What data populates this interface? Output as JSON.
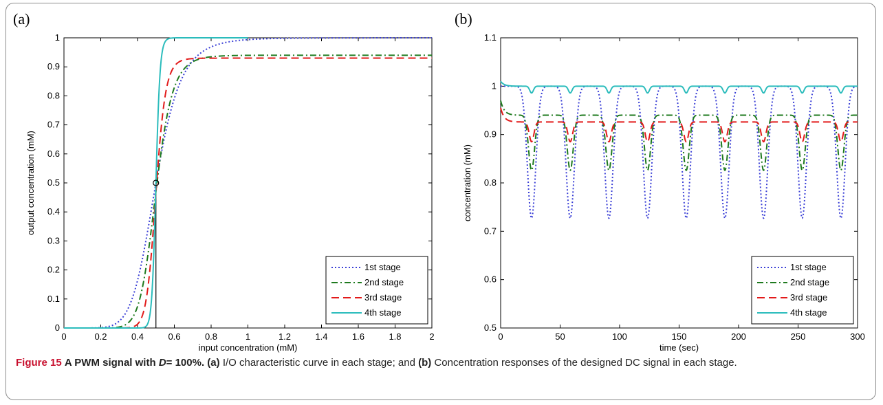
{
  "figure": {
    "panels": [
      "(a)",
      "(b)"
    ]
  },
  "caption": {
    "figure_label": "Figure 15",
    "title_pre": "A PWM signal with",
    "title_var": "D",
    "title_post": "= 100%.",
    "part_a": "(a)",
    "text_a": "I/O characteristic curve in each stage; and",
    "part_b": "(b)",
    "text_b": "Concentration responses of the designed DC signal in each stage."
  },
  "colors": {
    "stage1": "#3a3fd6",
    "stage2": "#1e7a1e",
    "stage3": "#e21a1a",
    "stage4": "#2bbcbc"
  },
  "chart_data": [
    {
      "panel": "(a)",
      "type": "line",
      "title": "",
      "xlabel": "input concentration (mM)",
      "ylabel": "output concentration (mM)",
      "xlim": [
        0,
        2
      ],
      "ylim": [
        0,
        1
      ],
      "xticks": [
        0,
        0.2,
        0.4,
        0.6,
        0.8,
        1,
        1.2,
        1.4,
        1.6,
        1.8,
        2
      ],
      "yticks": [
        0,
        0.1,
        0.2,
        0.3,
        0.4,
        0.5,
        0.6,
        0.7,
        0.8,
        0.9,
        1
      ],
      "xtick_labels": [
        "0",
        "0.2",
        "0.4",
        "0.6",
        "0.8",
        "1",
        "1.2",
        "1.4",
        "1.6",
        "1.8",
        "2"
      ],
      "ytick_labels": [
        "0",
        "0.1",
        "0.2",
        "0.3",
        "0.4",
        "0.5",
        "0.6",
        "0.7",
        "0.8",
        "0.9",
        "1"
      ],
      "grid": false,
      "legend": "bottom-right",
      "threshold_x": 0.5,
      "marker": {
        "x": 0.5,
        "y": 0.5
      },
      "series": [
        {
          "name": "1st stage",
          "style": "dotted",
          "color": "#3a3fd6",
          "ymax": 1.0,
          "curve": "hill",
          "n": 7.3,
          "end": 2.0,
          "points": [
            [
              0,
              0
            ],
            [
              0.1,
              0.0002
            ],
            [
              0.2,
              0.0094
            ],
            [
              0.3,
              0.0234
            ],
            [
              0.4,
              0.166
            ],
            [
              0.5,
              0.5
            ],
            [
              0.6,
              0.79
            ],
            [
              0.8,
              0.969
            ],
            [
              1.0,
              0.9937
            ],
            [
              1.4,
              0.9991
            ],
            [
              2.0,
              0.9999
            ]
          ]
        },
        {
          "name": "2nd stage",
          "style": "dashdot",
          "color": "#1e7a1e",
          "ymax": 0.94,
          "curve": "hill",
          "n": 11,
          "end": 2.0,
          "points": [
            [
              0,
              0
            ],
            [
              0.3,
              0.0035
            ],
            [
              0.4,
              0.08
            ],
            [
              0.45,
              0.22
            ],
            [
              0.5,
              0.47
            ],
            [
              0.55,
              0.684
            ],
            [
              0.6,
              0.817
            ],
            [
              0.7,
              0.91
            ],
            [
              0.8,
              0.93
            ],
            [
              1.0,
              0.94
            ],
            [
              2.0,
              0.94
            ]
          ]
        },
        {
          "name": "3rd stage",
          "style": "dashed",
          "color": "#e21a1a",
          "ymax": 0.93,
          "curve": "hill",
          "n": 19,
          "end": 2.0,
          "points": [
            [
              0,
              0
            ],
            [
              0.4,
              0.013
            ],
            [
              0.45,
              0.11
            ],
            [
              0.5,
              0.465
            ],
            [
              0.55,
              0.79
            ],
            [
              0.6,
              0.895
            ],
            [
              0.7,
              0.926
            ],
            [
              1.0,
              0.93
            ],
            [
              2.0,
              0.93
            ]
          ]
        },
        {
          "name": "4th stage",
          "style": "solid",
          "color": "#2bbcbc",
          "ymax": 1.0,
          "curve": "hill",
          "n": 45,
          "end": 1.0,
          "points": [
            [
              0,
              0
            ],
            [
              0.45,
              0.009
            ],
            [
              0.48,
              0.14
            ],
            [
              0.5,
              0.5
            ],
            [
              0.52,
              0.855
            ],
            [
              0.55,
              0.986
            ],
            [
              0.6,
              0.9997
            ],
            [
              1.0,
              1.0
            ]
          ]
        }
      ]
    },
    {
      "panel": "(b)",
      "type": "line",
      "title": "",
      "xlabel": "time (sec)",
      "ylabel": "concentration (mM)",
      "xlim": [
        0,
        300
      ],
      "ylim": [
        0.5,
        1.1
      ],
      "xticks": [
        0,
        50,
        100,
        150,
        200,
        250,
        300
      ],
      "yticks": [
        0.5,
        0.6,
        0.7,
        0.8,
        0.9,
        1,
        1.1
      ],
      "xtick_labels": [
        "0",
        "50",
        "100",
        "150",
        "200",
        "250",
        "300"
      ],
      "ytick_labels": [
        "0.5",
        "0.6",
        "0.7",
        "0.8",
        "0.9",
        "1",
        "1.1"
      ],
      "grid": false,
      "legend": "bottom-right",
      "period": 32.5,
      "first_dip": 26,
      "series": [
        {
          "name": "1st stage",
          "style": "dotted",
          "color": "#3a3fd6",
          "baseline": 1.0,
          "min": 0.727,
          "start": 1.0,
          "width": 5.0
        },
        {
          "name": "2nd stage",
          "style": "dashdot",
          "color": "#1e7a1e",
          "baseline": 0.94,
          "min": 0.826,
          "start": 0.97,
          "width": 3.6
        },
        {
          "name": "3rd stage",
          "style": "dashed",
          "color": "#e21a1a",
          "baseline": 0.926,
          "min": 0.885,
          "start": 0.955,
          "width": 2.8
        },
        {
          "name": "4th stage",
          "style": "solid",
          "color": "#2bbcbc",
          "baseline": 1.0,
          "min": 0.986,
          "start": 1.01,
          "width": 2.2
        }
      ]
    }
  ]
}
